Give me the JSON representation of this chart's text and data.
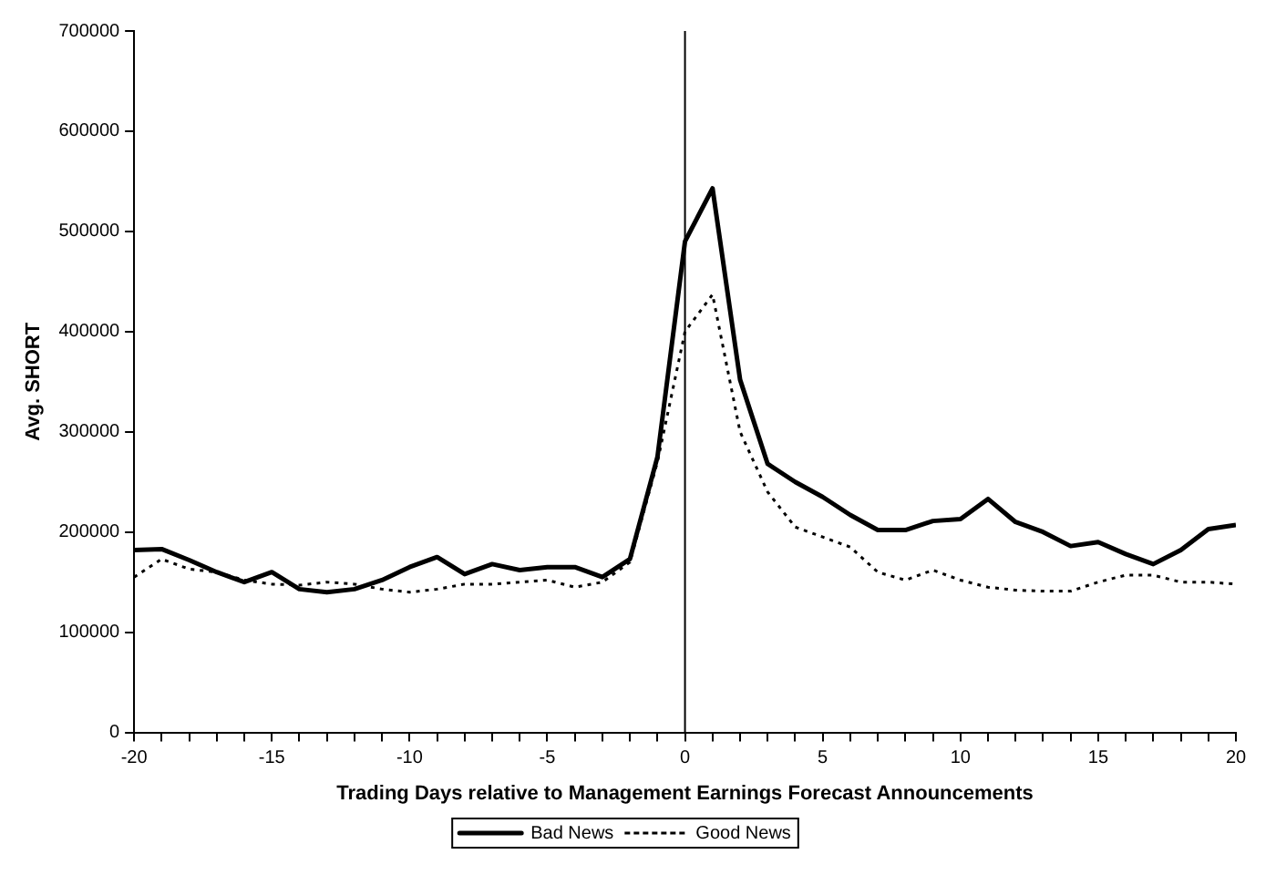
{
  "chart_data": {
    "type": "line",
    "xlabel": "Trading Days relative to Management Earnings Forecast Announcements",
    "ylabel": "Avg. SHORT",
    "x": [
      -20,
      -19,
      -18,
      -17,
      -16,
      -15,
      -14,
      -13,
      -12,
      -11,
      -10,
      -9,
      -8,
      -7,
      -6,
      -5,
      -4,
      -3,
      -2,
      -1,
      0,
      1,
      2,
      3,
      4,
      5,
      6,
      7,
      8,
      9,
      10,
      11,
      12,
      13,
      14,
      15,
      16,
      17,
      18,
      19,
      20
    ],
    "series": [
      {
        "name": "Bad News",
        "color": "#000000",
        "line_style": "solid",
        "values": [
          182000,
          183000,
          172000,
          160000,
          150000,
          160000,
          143000,
          140000,
          143000,
          152000,
          165000,
          175000,
          158000,
          168000,
          162000,
          165000,
          165000,
          155000,
          173000,
          275000,
          490000,
          543000,
          352000,
          268000,
          250000,
          235000,
          217000,
          202000,
          202000,
          211000,
          213000,
          233000,
          210000,
          200000,
          186000,
          190000,
          178000,
          168000,
          182000,
          203000,
          207000
        ]
      },
      {
        "name": "Good News",
        "color": "#000000",
        "line_style": "dotted",
        "values": [
          155000,
          173000,
          163000,
          160000,
          152000,
          148000,
          147000,
          150000,
          148000,
          143000,
          140000,
          143000,
          148000,
          148000,
          150000,
          152000,
          145000,
          150000,
          170000,
          270000,
          400000,
          437000,
          300000,
          240000,
          205000,
          195000,
          185000,
          160000,
          152000,
          162000,
          152000,
          145000,
          142000,
          141000,
          141000,
          150000,
          157000,
          157000,
          150000,
          150000,
          148000
        ]
      }
    ],
    "xlim": [
      -20,
      20
    ],
    "xticks": [
      -20,
      {
        "value": -19,
        "label": null
      },
      {
        "value": -18,
        "label": null
      },
      {
        "value": -17,
        "label": null
      },
      {
        "value": -16,
        "label": null
      },
      -15,
      {
        "value": -14,
        "label": null
      },
      {
        "value": -13,
        "label": null
      },
      {
        "value": -12,
        "label": null
      },
      {
        "value": -11,
        "label": null
      },
      -10,
      {
        "value": -9,
        "label": null
      },
      {
        "value": -8,
        "label": null
      },
      {
        "value": -7,
        "label": null
      },
      {
        "value": -6,
        "label": null
      },
      -5,
      {
        "value": -4,
        "label": null
      },
      {
        "value": -3,
        "label": null
      },
      {
        "value": -2,
        "label": null
      },
      {
        "value": -1,
        "label": null
      },
      0,
      {
        "value": 1,
        "label": null
      },
      {
        "value": 2,
        "label": null
      },
      {
        "value": 3,
        "label": null
      },
      {
        "value": 4,
        "label": null
      },
      5,
      {
        "value": 6,
        "label": null
      },
      {
        "value": 7,
        "label": null
      },
      {
        "value": 8,
        "label": null
      },
      {
        "value": 9,
        "label": null
      },
      10,
      {
        "value": 11,
        "label": null
      },
      {
        "value": 12,
        "label": null
      },
      {
        "value": 13,
        "label": null
      },
      {
        "value": 14,
        "label": null
      },
      15,
      {
        "value": 16,
        "label": null
      },
      {
        "value": 17,
        "label": null
      },
      {
        "value": 18,
        "label": null
      },
      {
        "value": 19,
        "label": null
      },
      20
    ],
    "ylim": [
      0,
      700000
    ],
    "yticks": [
      0,
      100000,
      200000,
      300000,
      400000,
      500000,
      600000,
      700000
    ],
    "ref_lines": [
      {
        "axis": "x",
        "value": 0,
        "color": "#000000"
      }
    ],
    "grid": false,
    "legend": "bottom",
    "marker": "none"
  }
}
